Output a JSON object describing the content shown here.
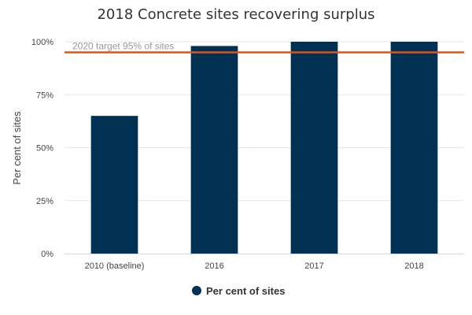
{
  "chart_data": {
    "type": "bar",
    "title": "2018 Concrete sites recovering surplus",
    "xlabel": "",
    "ylabel": "Per cent of sites",
    "categories": [
      "2010 (baseline)",
      "2016",
      "2017",
      "2018"
    ],
    "series": [
      {
        "name": "Per cent of sites",
        "values": [
          65,
          98,
          100,
          100
        ],
        "color": "#003152"
      }
    ],
    "ylim": [
      0,
      100
    ],
    "yticks": [
      0,
      25,
      50,
      75,
      100
    ],
    "ytick_labels": [
      "0%",
      "25%",
      "50%",
      "75%",
      "100%"
    ],
    "grid": true,
    "legend_position": "bottom",
    "target_line": {
      "value": 95,
      "label": "2020 target 95% of sites",
      "color": "#e2531c"
    }
  }
}
